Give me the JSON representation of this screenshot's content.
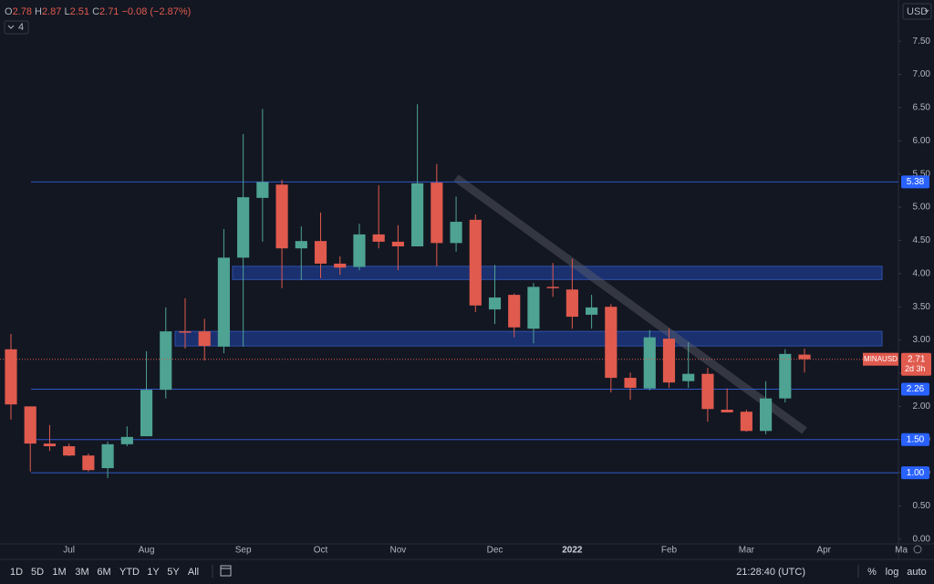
{
  "chart_data": {
    "type": "candlestick",
    "symbol": "MINAUSD",
    "change": "−0.08 (−2.87%)",
    "indicator_count": "4",
    "currency": "USD",
    "countdown": "2d 3h",
    "up_color": "#4ea393",
    "down_color": "#e05a4e",
    "categories": [
      null,
      null,
      null,
      "Jul",
      null,
      null,
      null,
      "Aug",
      null,
      null,
      null,
      null,
      "Sep",
      null,
      null,
      null,
      "Oct",
      null,
      null,
      null,
      "Nov",
      null,
      null,
      null,
      null,
      "Dec",
      null,
      null,
      null,
      "2022",
      null,
      null,
      null,
      null,
      "Feb",
      null,
      null,
      null,
      "Mar",
      null,
      null,
      null,
      "Apr",
      null,
      null,
      null,
      "Ma"
    ],
    "open": [
      2.86,
      2.0,
      1.44,
      1.4,
      1.26,
      1.07,
      1.43,
      1.55,
      2.25,
      3.13,
      3.13,
      2.9,
      4.24,
      5.14,
      5.34,
      4.38,
      4.49,
      4.15,
      4.1,
      4.59,
      4.48,
      4.41,
      5.37,
      4.46,
      4.81,
      3.46,
      3.68,
      3.17,
      3.8,
      3.76,
      3.38,
      3.5,
      2.43,
      2.27,
      3.02,
      2.38,
      2.49,
      1.95,
      1.92,
      1.63,
      2.12,
      2.78,
      null,
      null,
      null,
      null,
      null
    ],
    "high": [
      3.09,
      2.0,
      1.72,
      1.44,
      1.29,
      1.47,
      1.7,
      2.83,
      3.49,
      3.63,
      3.32,
      4.67,
      6.1,
      6.48,
      5.41,
      4.71,
      4.92,
      4.26,
      4.75,
      5.33,
      4.73,
      6.55,
      5.65,
      5.16,
      4.89,
      4.13,
      3.7,
      3.86,
      4.16,
      4.22,
      3.68,
      3.54,
      2.51,
      3.15,
      3.17,
      2.97,
      2.58,
      2.27,
      1.95,
      2.38,
      2.86,
      2.87,
      null,
      null,
      null,
      null,
      null
    ],
    "low": [
      1.8,
      1.02,
      1.33,
      1.25,
      1.02,
      0.92,
      1.4,
      1.55,
      2.12,
      2.87,
      2.69,
      2.8,
      2.9,
      4.48,
      3.78,
      3.9,
      3.93,
      3.98,
      4.05,
      4.38,
      4.05,
      4.41,
      4.11,
      4.33,
      3.42,
      3.24,
      3.04,
      2.95,
      3.65,
      3.17,
      3.17,
      2.21,
      2.1,
      2.24,
      2.28,
      2.28,
      1.77,
      1.91,
      1.62,
      1.58,
      2.06,
      2.51,
      null,
      null,
      null,
      null,
      null
    ],
    "close": [
      2.03,
      1.44,
      1.4,
      1.26,
      1.04,
      1.43,
      1.54,
      2.25,
      3.13,
      3.11,
      2.91,
      4.24,
      5.15,
      5.38,
      4.38,
      4.49,
      4.15,
      4.09,
      4.59,
      4.48,
      4.41,
      5.36,
      4.46,
      4.78,
      3.52,
      3.64,
      3.19,
      3.8,
      3.78,
      3.35,
      3.49,
      2.43,
      2.28,
      3.04,
      2.36,
      2.49,
      1.96,
      1.91,
      1.63,
      2.12,
      2.79,
      2.71,
      null,
      null,
      null,
      null,
      null
    ],
    "ylim": [
      -0.07,
      8.12
    ],
    "yticks": [
      {
        "value": 0,
        "label": "0.00"
      },
      {
        "value": 0.5,
        "label": "0.50"
      },
      {
        "value": 1,
        "label": "1.00"
      },
      {
        "value": 1.5,
        "label": "1.50"
      },
      {
        "value": 2,
        "label": "2.00"
      },
      {
        "value": 2.5,
        "label": "2.50"
      },
      {
        "value": 3,
        "label": "3.00"
      },
      {
        "value": 3.5,
        "label": "3.50"
      },
      {
        "value": 4,
        "label": "4.00"
      },
      {
        "value": 4.5,
        "label": "4.50"
      },
      {
        "value": 5,
        "label": "5.00"
      },
      {
        "value": 5.5,
        "label": "5.50"
      },
      {
        "value": 6,
        "label": "6.00"
      },
      {
        "value": 6.5,
        "label": "6.50"
      },
      {
        "value": 7,
        "label": "7.00"
      },
      {
        "value": 7.5,
        "label": "7.50"
      }
    ],
    "levels": [
      {
        "value": 5.38,
        "label": "5.38"
      },
      {
        "value": 2.26,
        "label": "2.26"
      },
      {
        "value": 1.5,
        "label": "1.50"
      },
      {
        "value": 1,
        "label": "1.00"
      }
    ],
    "zones": [
      {
        "from": 3.91,
        "to": 4.11
      },
      {
        "from": 2.91,
        "to": 3.13
      }
    ],
    "grid": false
  },
  "toolbar": {
    "ranges": [
      "1D",
      "5D",
      "1M",
      "3M",
      "6M",
      "YTD",
      "1Y",
      "5Y",
      "All"
    ],
    "time": "21:28:40 (UTC)",
    "options": [
      "%",
      "log",
      "auto"
    ]
  }
}
